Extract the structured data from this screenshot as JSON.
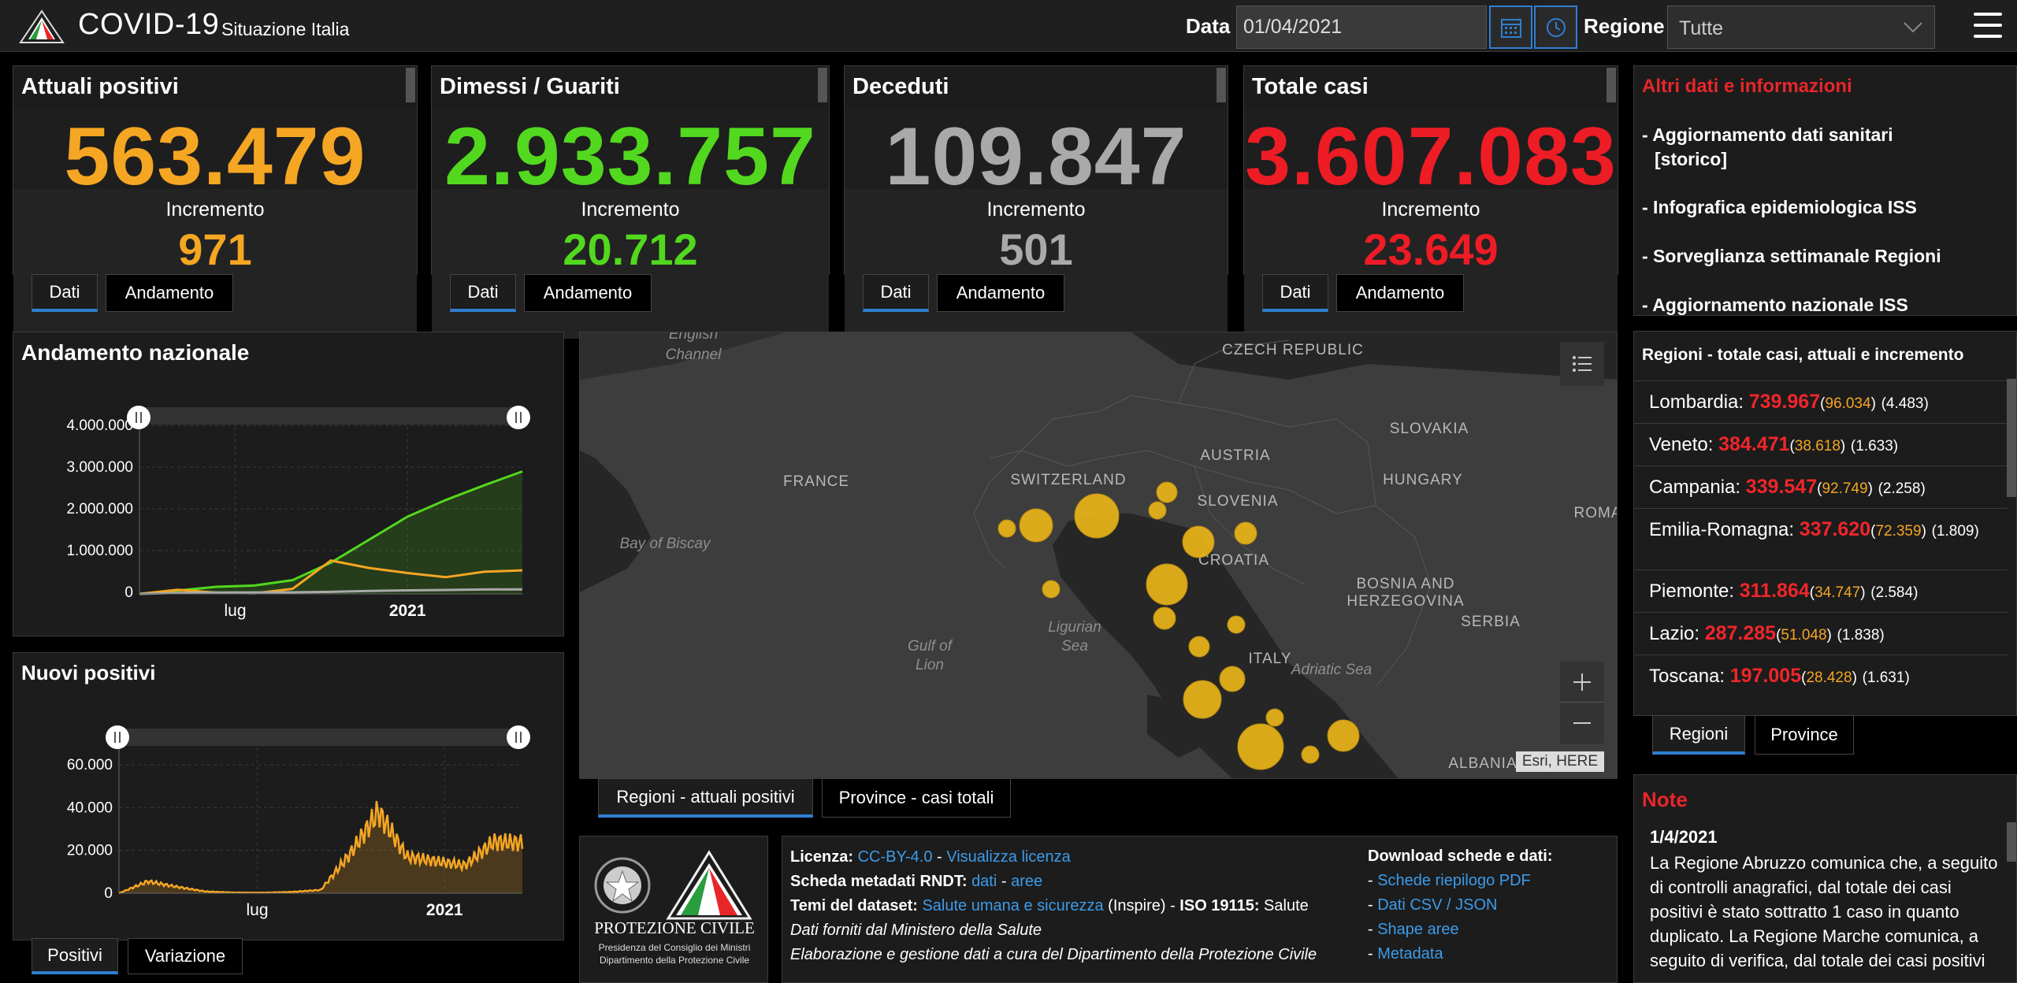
{
  "header": {
    "title": "COVID-19",
    "subtitle": "Situazione Italia",
    "data_label": "Data",
    "date_value": "01/04/2021",
    "regione_label": "Regione",
    "regione_value": "Tutte"
  },
  "kpis": [
    {
      "title": "Attuali positivi",
      "value": "563.479",
      "inc_label": "Incremento",
      "increment": "971",
      "color": "#f5a623"
    },
    {
      "title": "Dimessi / Guariti",
      "value": "2.933.757",
      "inc_label": "Incremento",
      "increment": "20.712",
      "color": "#52d81e"
    },
    {
      "title": "Deceduti",
      "value": "109.847",
      "inc_label": "Incremento",
      "increment": "501",
      "color": "#a9a9a9"
    },
    {
      "title": "Totale casi",
      "value": "3.607.083",
      "inc_label": "Incremento",
      "increment": "23.649",
      "color": "#ee1c25"
    }
  ],
  "kpi_tabs": {
    "dati": "Dati",
    "andamento": "Andamento"
  },
  "andamento": {
    "title": "Andamento nazionale",
    "chart_data": {
      "type": "line",
      "title": "Andamento nazionale",
      "yticks": [
        "4.000.000",
        "3.000.000",
        "2.000.000",
        "1.000.000",
        "0"
      ],
      "xticks": [
        "lug",
        "2021"
      ],
      "ylim": [
        0,
        4000000
      ],
      "x": [
        "2020-02",
        "2020-04",
        "2020-06",
        "2020-08",
        "2020-10",
        "2020-11",
        "2020-12",
        "2021-01",
        "2021-02",
        "2021-03",
        "2021-04"
      ],
      "series": [
        {
          "color": "#52d81e",
          "values": [
            0,
            80000,
            170000,
            200000,
            330000,
            750000,
            1300000,
            1850000,
            2250000,
            2600000,
            2933757
          ]
        },
        {
          "color": "#f5a623",
          "values": [
            0,
            100000,
            30000,
            15000,
            120000,
            800000,
            620000,
            500000,
            400000,
            530000,
            563479
          ]
        },
        {
          "color": "#a9a9a9",
          "values": [
            0,
            25000,
            34000,
            35000,
            37000,
            50000,
            70000,
            85000,
            95000,
            105000,
            109847
          ]
        }
      ]
    }
  },
  "nuovi": {
    "title": "Nuovi positivi",
    "chart_data": {
      "type": "area",
      "title": "Nuovi positivi",
      "yticks": [
        "60.000",
        "40.000",
        "20.000",
        "0"
      ],
      "xticks": [
        "lug",
        "2021"
      ],
      "ylim": [
        0,
        60000
      ],
      "x": [
        "2020-02",
        "2020-03",
        "2020-04",
        "2020-05",
        "2020-06",
        "2020-07",
        "2020-08",
        "2020-09",
        "2020-10",
        "2020-11",
        "2020-12",
        "2021-01",
        "2021-02",
        "2021-03",
        "2021-04"
      ],
      "values": [
        0,
        5500,
        3000,
        800,
        300,
        250,
        600,
        1500,
        18000,
        38000,
        17000,
        15000,
        13000,
        24000,
        23649
      ],
      "color": "#f5a623"
    }
  },
  "chart_tabs": {
    "positivi": "Positivi",
    "variazione": "Variazione"
  },
  "map": {
    "labels": [
      "FRANCE",
      "SWITZERLAND",
      "AUSTRIA",
      "HUNGARY",
      "SLOVAKIA",
      "CZECH REPUBLIC",
      "SLOVENIA",
      "CROATIA",
      "BOSNIA AND",
      "HERZEGOVINA",
      "SERBIA",
      "ITALY",
      "ALBANIA",
      "ROMA"
    ],
    "seas": [
      "English",
      "Channel",
      "Bay of Biscay",
      "Ligurian",
      "Sea",
      "Gulf of",
      "Lion",
      "Adriatic Sea"
    ],
    "attribution": "Esri, HERE",
    "bubble_color": "#e8b419"
  },
  "map_tabs": {
    "regioni": "Regioni - attuali positivi",
    "province": "Province - casi totali"
  },
  "info": {
    "title": "Altri dati e informazioni",
    "items": [
      "- Aggiornamento dati sanitari",
      "[storico]",
      "- Infografica epidemiologica ISS",
      "- Sorveglianza settimanale Regioni",
      "- Aggiornamento nazionale ISS"
    ]
  },
  "regions": {
    "title": "Regioni - totale casi, attuali e incremento",
    "rows": [
      {
        "name": "Lombardia:",
        "total": "739.967",
        "attuali": "96.034",
        "inc": "4.483"
      },
      {
        "name": "Veneto:",
        "total": "384.471",
        "attuali": "38.618",
        "inc": "1.633"
      },
      {
        "name": "Campania:",
        "total": "339.547",
        "attuali": "92.749",
        "inc": "2.258"
      },
      {
        "name": "Emilia-Romagna:",
        "total": "337.620",
        "attuali": "72.359",
        "inc": "1.809"
      },
      {
        "name": "Piemonte:",
        "total": "311.864",
        "attuali": "34.747",
        "inc": "2.584"
      },
      {
        "name": "Lazio:",
        "total": "287.285",
        "attuali": "51.048",
        "inc": "1.838"
      },
      {
        "name": "Toscana:",
        "total": "197.005",
        "attuali": "28.428",
        "inc": "1.631"
      }
    ]
  },
  "region_tabs": {
    "regioni": "Regioni",
    "province": "Province"
  },
  "note": {
    "title": "Note",
    "date": "1/4/2021",
    "text": "La Regione Abruzzo comunica che, a seguito di controlli anagrafici, dal totale dei casi positivi è stato sottratto 1 caso in quanto duplicato. La Regione Marche comunica, a seguito di verifica, dal totale dei casi positivi"
  },
  "protezione": {
    "name": "PROTEZIONE CIVILE",
    "line1": "Presidenza del Consiglio dei Ministri",
    "line2": "Dipartimento della Protezione Civile"
  },
  "license": {
    "licenza_label": "Licenza:",
    "licenza_link": "CC-BY-4.0",
    "sep": " - ",
    "visualizza": "Visualizza licenza",
    "scheda_label": "Scheda metadati RNDT:",
    "dati": "dati",
    "aree": "aree",
    "temi_label": "Temi del dataset:",
    "temi_link": "Salute umana e sicurezza",
    "inspire": "(Inspire) - ",
    "iso_label": "ISO 19115:",
    "iso_val": "Salute",
    "forniti": "Dati forniti dal Ministero della Salute",
    "elaborazione": "Elaborazione e gestione dati a cura del Dipartimento della Protezione Civile",
    "download_label": "Download schede e dati:",
    "downloads": [
      "Schede riepilogo PDF",
      "Dati CSV / JSON",
      "Shape aree",
      "Metadata"
    ]
  }
}
